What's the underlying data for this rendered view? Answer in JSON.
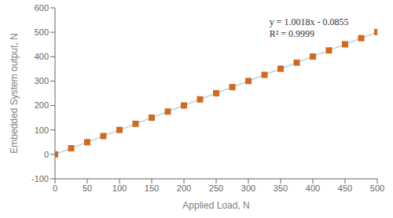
{
  "chart_data": {
    "type": "scatter",
    "xlabel": "Applied Load, N",
    "ylabel": "Embedded System output, N",
    "xlim": [
      0,
      500
    ],
    "ylim": [
      -100,
      600
    ],
    "xticks": [
      0,
      50,
      100,
      150,
      200,
      250,
      300,
      350,
      400,
      450,
      500
    ],
    "yticks": [
      -100,
      0,
      100,
      200,
      300,
      400,
      500,
      600
    ],
    "grid": false,
    "series": [
      {
        "type": "line",
        "color": "#ADD8E6",
        "x": [
          0,
          500
        ],
        "values": [
          -0.0855,
          500.8145
        ]
      },
      {
        "type": "scatter",
        "color": "#D2691E",
        "marker": "square",
        "x": [
          0,
          25,
          50,
          75,
          100,
          125,
          150,
          175,
          200,
          225,
          250,
          275,
          300,
          325,
          350,
          375,
          400,
          425,
          450,
          475,
          500
        ],
        "values": [
          -0.0855,
          24.9595,
          50.0045,
          75.0495,
          100.0945,
          125.1395,
          150.1845,
          175.2295,
          200.2745,
          225.3195,
          250.3645,
          275.4095,
          300.4545,
          325.4995,
          350.5445,
          375.5895,
          400.6345,
          425.6795,
          450.7245,
          475.7695,
          500.8145
        ]
      }
    ],
    "annotation": "y = 1.0018x - 0.0855\nR² = 0.9999"
  }
}
